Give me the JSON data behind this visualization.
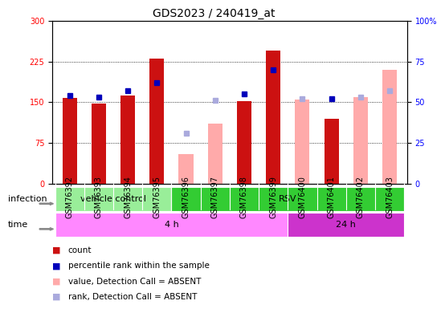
{
  "title": "GDS2023 / 240419_at",
  "samples": [
    "GSM76392",
    "GSM76393",
    "GSM76394",
    "GSM76395",
    "GSM76396",
    "GSM76397",
    "GSM76398",
    "GSM76399",
    "GSM76400",
    "GSM76401",
    "GSM76402",
    "GSM76403"
  ],
  "count_present": [
    158,
    147,
    162,
    230,
    null,
    null,
    152,
    245,
    null,
    120,
    null,
    null
  ],
  "rank_present_pct": [
    54,
    53,
    57,
    62,
    null,
    null,
    55,
    70,
    null,
    52,
    null,
    null
  ],
  "count_absent": [
    null,
    null,
    null,
    null,
    55,
    110,
    null,
    null,
    155,
    null,
    160,
    210
  ],
  "rank_absent_pct": [
    null,
    null,
    null,
    null,
    31,
    51,
    null,
    null,
    52,
    null,
    53,
    57
  ],
  "left_ylim": [
    0,
    300
  ],
  "right_ylim": [
    0,
    100
  ],
  "left_yticks": [
    0,
    75,
    150,
    225,
    300
  ],
  "right_yticks": [
    0,
    25,
    50,
    75,
    100
  ],
  "infection_groups": [
    {
      "label": "vehicle control",
      "start": 0,
      "end": 4,
      "color": "#99EE99"
    },
    {
      "label": "RSV",
      "start": 4,
      "end": 12,
      "color": "#33CC33"
    }
  ],
  "time_groups": [
    {
      "label": "4 h",
      "start": 0,
      "end": 8,
      "color": "#FF88FF"
    },
    {
      "label": "24 h",
      "start": 8,
      "end": 12,
      "color": "#CC33CC"
    }
  ],
  "count_color_present": "#CC1111",
  "count_color_absent": "#FFAAAA",
  "rank_color_present": "#0000BB",
  "rank_color_absent": "#AAAADD",
  "title_fontsize": 10,
  "tick_fontsize": 7,
  "label_fontsize": 8,
  "legend_fontsize": 7.5
}
